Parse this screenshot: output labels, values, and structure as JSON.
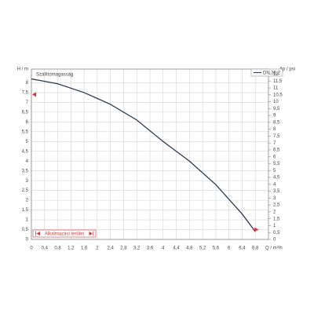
{
  "chart_data": {
    "type": "line",
    "title": "Szállítómagasság",
    "x_label": "Q / m³/h",
    "y_label": "H / m",
    "y2_label": "Δp / psi",
    "annotation": "Alkalmazási terület",
    "x": [
      0,
      0.8,
      1.6,
      2.4,
      3.2,
      4.0,
      4.8,
      5.6,
      6.4,
      6.8
    ],
    "series": [
      {
        "name": "DN 36,2",
        "color": "#2b3a4f",
        "values": [
          8.2,
          7.95,
          7.5,
          6.9,
          6.1,
          5.0,
          4.0,
          2.8,
          1.3,
          0.4
        ]
      }
    ],
    "xlim": [
      0,
      7.2
    ],
    "xticks": [
      0,
      {
        "value": 0.4,
        "label": "0,4"
      },
      {
        "value": 0.8,
        "label": "0,8"
      },
      {
        "value": 1.2,
        "label": "1,2"
      },
      {
        "value": 1.6,
        "label": "1,6"
      },
      2,
      {
        "value": 2.4,
        "label": "2,4"
      },
      {
        "value": 2.8,
        "label": "2,8"
      },
      {
        "value": 3.2,
        "label": "3,2"
      },
      {
        "value": 3.6,
        "label": "3,6"
      },
      4,
      {
        "value": 4.4,
        "label": "4,4"
      },
      {
        "value": 4.8,
        "label": "4,8"
      },
      {
        "value": 5.2,
        "label": "5,2"
      },
      {
        "value": 5.6,
        "label": "5,6"
      },
      6,
      {
        "value": 6.4,
        "label": "6,4"
      },
      {
        "value": 6.8,
        "label": "6,8"
      }
    ],
    "ylim": [
      0,
      8.7
    ],
    "yticks": [
      0,
      {
        "value": 0.5,
        "label": "0,5"
      },
      1,
      {
        "value": 1.5,
        "label": "1,5"
      },
      2,
      {
        "value": 2.5,
        "label": "2,5"
      },
      3,
      {
        "value": 3.5,
        "label": "3,5"
      },
      4,
      {
        "value": 4.5,
        "label": "4,5"
      },
      5,
      {
        "value": 5.5,
        "label": "5,5"
      },
      6,
      {
        "value": 6.5,
        "label": "6,5"
      },
      7,
      {
        "value": 7.5,
        "label": "7,5"
      },
      8
    ],
    "y2lim": [
      0,
      12.37
    ],
    "y2ticks": [
      0,
      {
        "value": 0.5,
        "label": "0,5"
      },
      1,
      {
        "value": 1.5,
        "label": "1,5"
      },
      2,
      {
        "value": 2.5,
        "label": "2,5"
      },
      3,
      {
        "value": 3.5,
        "label": "3,5"
      },
      4,
      {
        "value": 4.5,
        "label": "4,5"
      },
      5,
      {
        "value": 5.5,
        "label": "5,5"
      },
      6,
      {
        "value": 6.5,
        "label": "6,5"
      },
      7,
      {
        "value": 7.5,
        "label": "7,5"
      },
      8,
      {
        "value": 8.5,
        "label": "8,5"
      },
      9,
      {
        "value": 9.5,
        "label": "9,5"
      },
      10,
      {
        "value": 10.5,
        "label": "10,5"
      },
      11,
      {
        "value": 11.5,
        "label": "11,5"
      },
      12
    ],
    "grid": true
  }
}
